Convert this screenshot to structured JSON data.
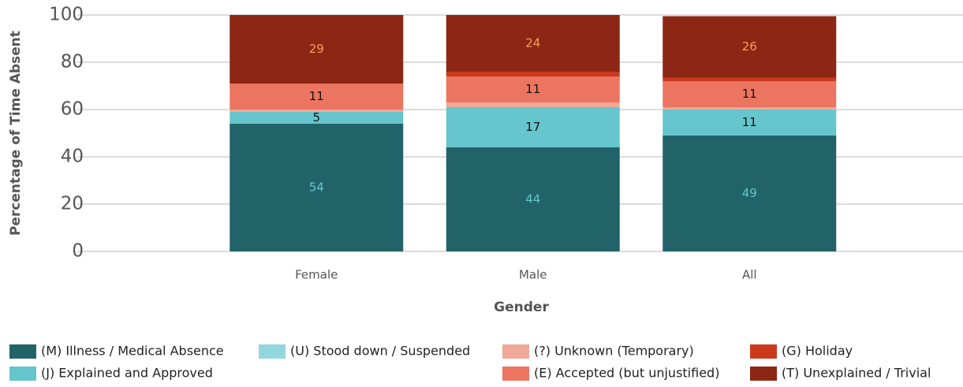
{
  "chart_data": {
    "type": "stacked_bar",
    "y_label": "Percentage of Time Absent",
    "x_label": "Gender",
    "categories": [
      "Female",
      "Male",
      "All"
    ],
    "series": [
      {
        "name": "(M) Illness / Medical Absence",
        "color": "#22636a",
        "label_color": "#66c5cd",
        "values": [
          54,
          44,
          49
        ]
      },
      {
        "name": "(J) Explained and Approved",
        "color": "#66c5cd",
        "label_color": "#111111",
        "values": [
          5,
          17,
          11
        ]
      },
      {
        "name": "(U) Stood down / Suspended",
        "color": "#93d7de",
        "label_color": "#111111",
        "values": [
          0,
          0,
          0
        ]
      },
      {
        "name": "(?) Unknown (Temporary)",
        "color": "#f2a898",
        "label_color": "#111111",
        "values": [
          1,
          2,
          1
        ]
      },
      {
        "name": "(E) Accepted (but unjustified)",
        "color": "#ec7561",
        "label_color": "#111111",
        "values": [
          11,
          11,
          11
        ]
      },
      {
        "name": "(G) Holiday",
        "color": "#cc3a1e",
        "label_color": "#111111",
        "values": [
          0,
          2,
          1.5
        ]
      },
      {
        "name": "(T) Unexplained / Trivial",
        "color": "#8b2714",
        "label_color": "#f5a05a",
        "values": [
          29,
          24,
          26
        ]
      }
    ],
    "ylim": [
      0,
      100
    ],
    "yticks": [
      0,
      20,
      40,
      60,
      80,
      100
    ],
    "grid": true
  }
}
